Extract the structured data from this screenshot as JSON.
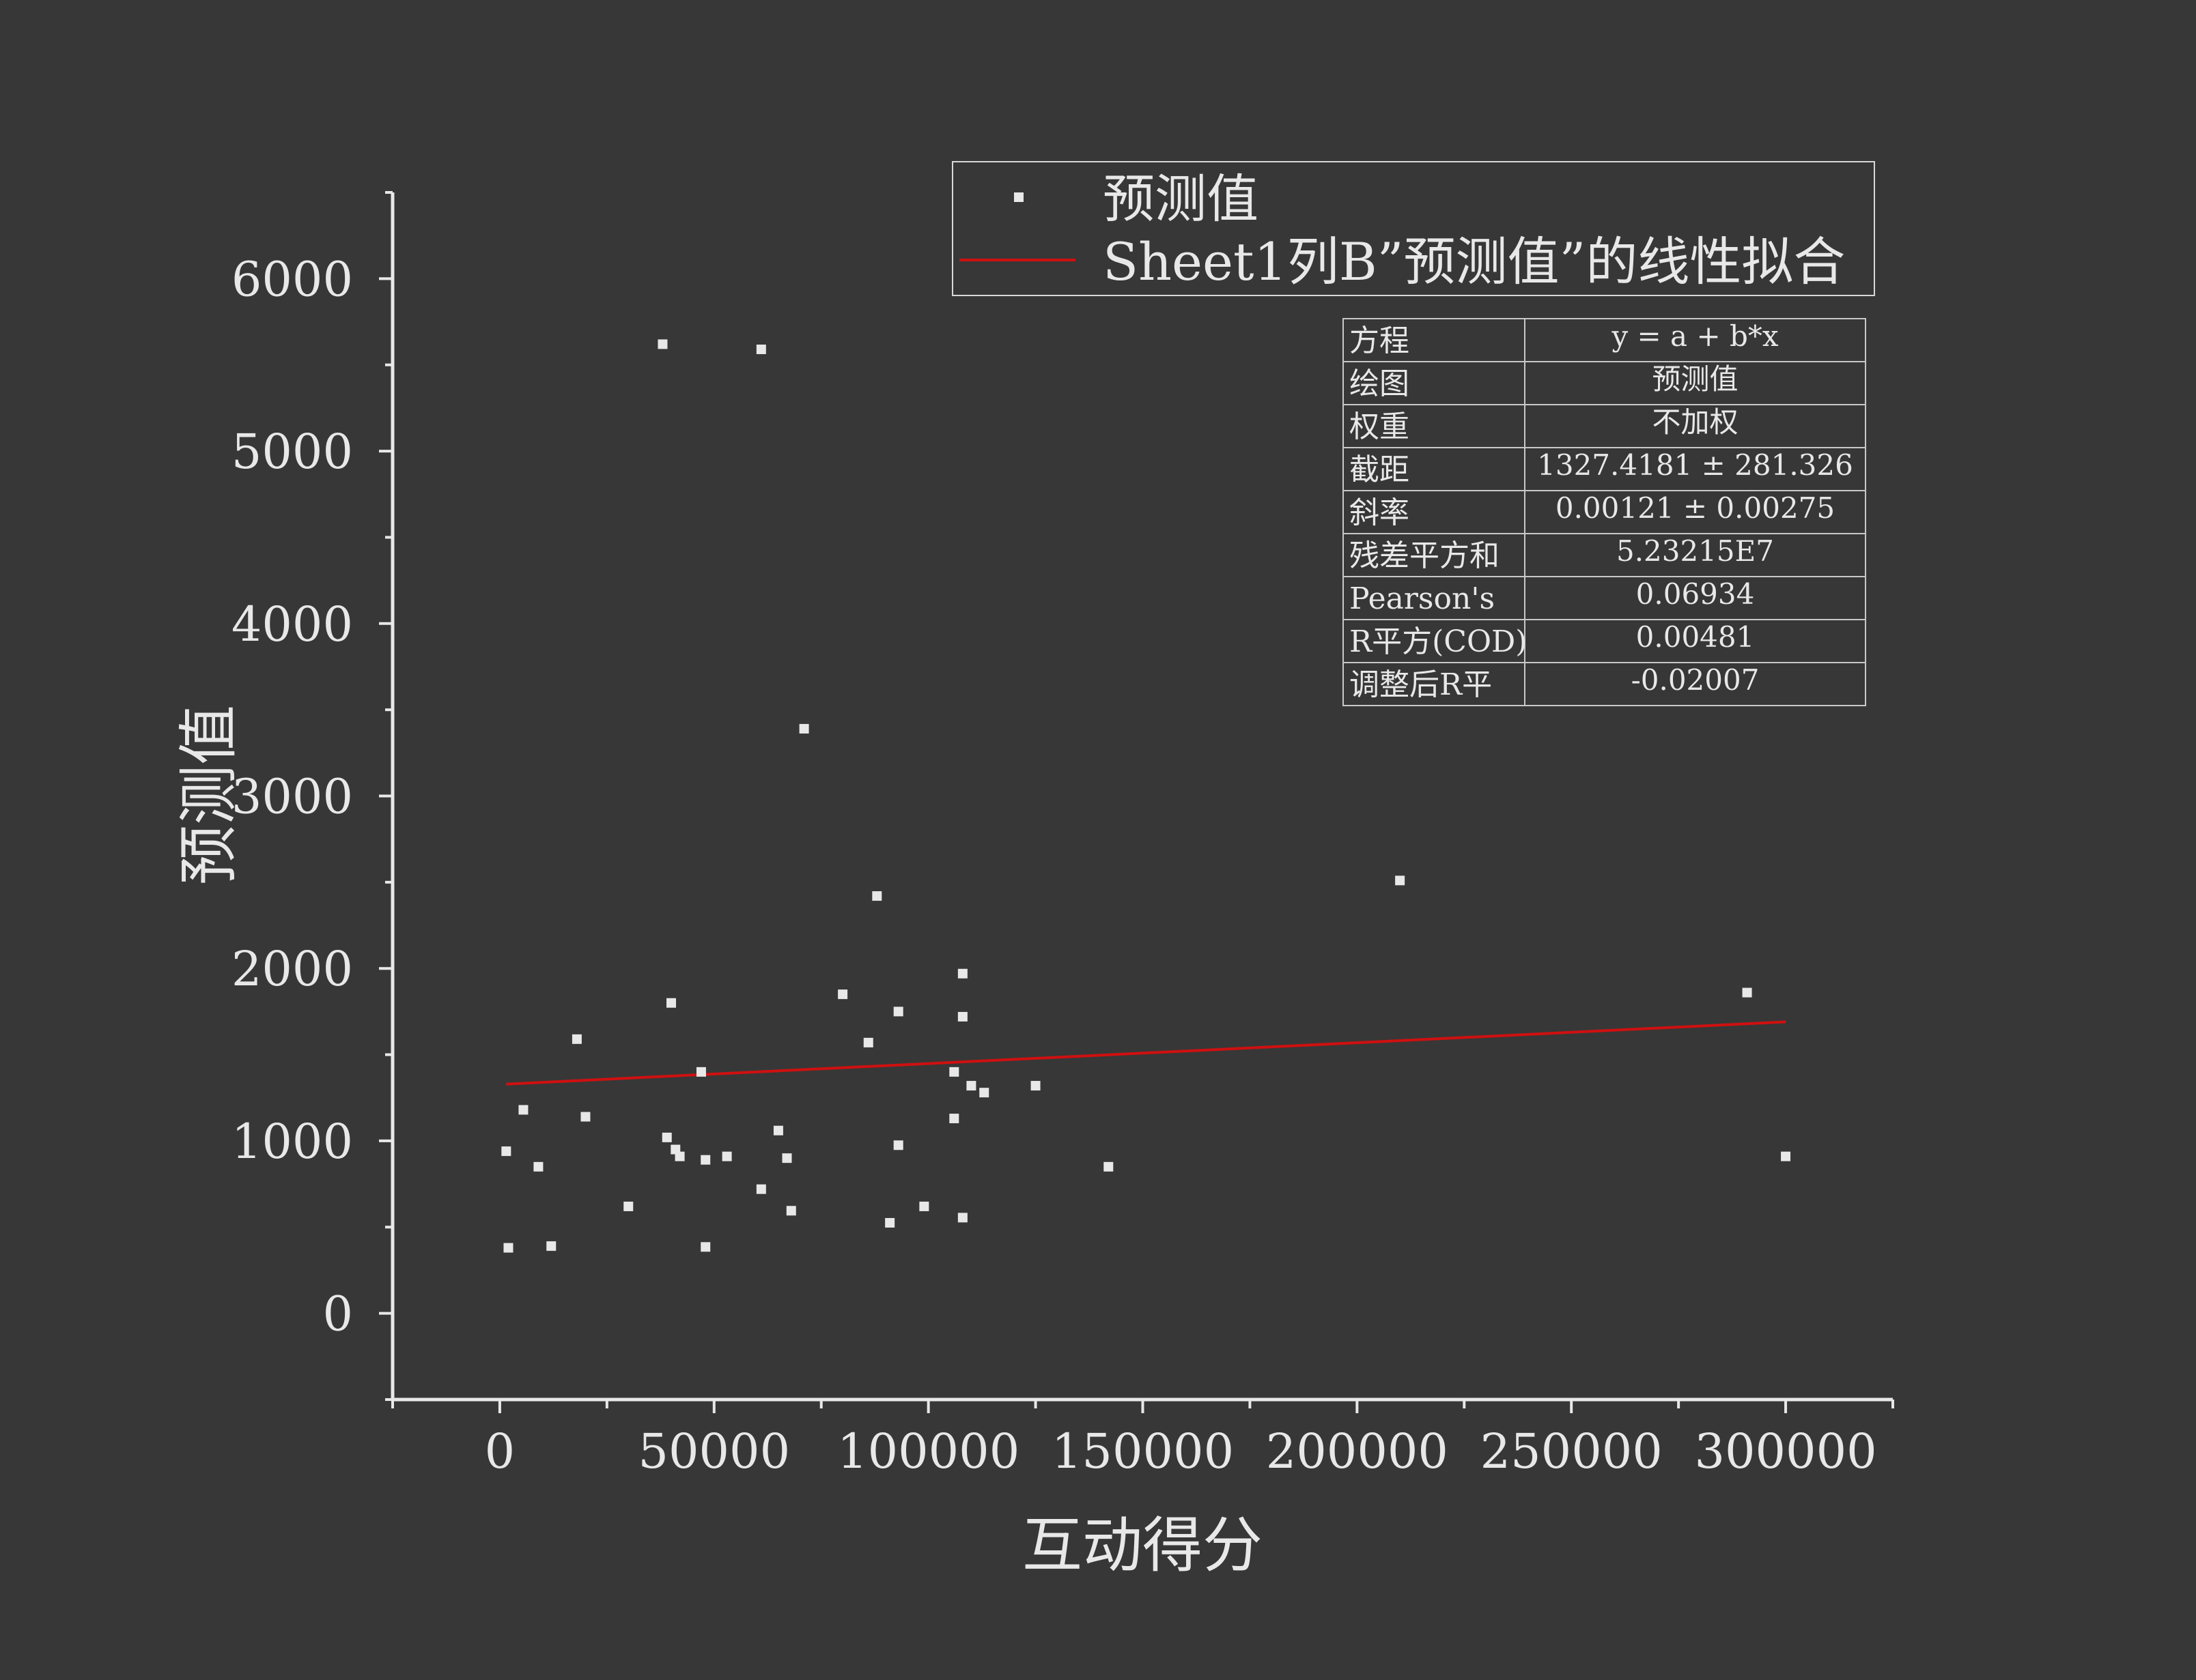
{
  "chart_data": {
    "type": "scatter",
    "xlabel": "互动得分",
    "ylabel": "预测值",
    "xlim": [
      -25000,
      325000
    ],
    "ylim": [
      -500,
      6500
    ],
    "xticks": [
      0,
      50000,
      100000,
      150000,
      200000,
      250000,
      300000
    ],
    "xtick_labels": [
      "0",
      "50000",
      "100000",
      "150000",
      "200000",
      "250000",
      "300000"
    ],
    "yticks": [
      0,
      1000,
      2000,
      3000,
      4000,
      5000,
      6000
    ],
    "ytick_labels": [
      "0",
      "1000",
      "2000",
      "3000",
      "4000",
      "5000",
      "6000"
    ],
    "grid": false,
    "legend": {
      "placement": "top-right",
      "entries": [
        {
          "label": "预测值",
          "marker": "square",
          "color": "#e8e8e8"
        },
        {
          "label": "Sheet1列B”预测值”的线性拟合",
          "marker": "line",
          "color": "#d01010"
        }
      ]
    },
    "series": [
      {
        "name": "预测值",
        "kind": "scatter",
        "color": "#e8e8e8",
        "points": [
          [
            1500,
            940
          ],
          [
            2000,
            380
          ],
          [
            5500,
            1180
          ],
          [
            9000,
            850
          ],
          [
            12000,
            390
          ],
          [
            20000,
            1140
          ],
          [
            18000,
            1590
          ],
          [
            30000,
            620
          ],
          [
            38000,
            5620
          ],
          [
            40000,
            1800
          ],
          [
            39000,
            1020
          ],
          [
            41000,
            950
          ],
          [
            42000,
            910
          ],
          [
            47000,
            1400
          ],
          [
            48000,
            890
          ],
          [
            48000,
            385
          ],
          [
            53000,
            910
          ],
          [
            61000,
            720
          ],
          [
            61000,
            5590
          ],
          [
            65000,
            1060
          ],
          [
            67000,
            900
          ],
          [
            68000,
            595
          ],
          [
            71000,
            3390
          ],
          [
            80000,
            1850
          ],
          [
            86000,
            1570
          ],
          [
            88000,
            2420
          ],
          [
            91000,
            525
          ],
          [
            93000,
            1750
          ],
          [
            93000,
            975
          ],
          [
            99000,
            620
          ],
          [
            106000,
            1400
          ],
          [
            106000,
            1130
          ],
          [
            108000,
            1970
          ],
          [
            108000,
            1720
          ],
          [
            108000,
            555
          ],
          [
            110000,
            1320
          ],
          [
            113000,
            1280
          ],
          [
            125000,
            1320
          ],
          [
            142000,
            850
          ],
          [
            210000,
            2510
          ],
          [
            291000,
            1860
          ],
          [
            300000,
            910
          ]
        ]
      },
      {
        "name": "Sheet1列B”预测值”的线性拟合",
        "kind": "line",
        "color": "#d01010",
        "points": [
          [
            1500,
            1329.2
          ],
          [
            300000,
            1690.4
          ]
        ]
      }
    ],
    "fit_table": [
      {
        "label": "方程",
        "value": "y = a + b*x"
      },
      {
        "label": "绘图",
        "value": "预测值"
      },
      {
        "label": "权重",
        "value": "不加权"
      },
      {
        "label": "截距",
        "value": "1327.4181 ± 281.326"
      },
      {
        "label": "斜率",
        "value": "0.00121 ± 0.00275"
      },
      {
        "label": "残差平方和",
        "value": "5.23215E7"
      },
      {
        "label": "Pearson's",
        "value": "0.06934"
      },
      {
        "label": "R平方(COD)",
        "value": "0.00481"
      },
      {
        "label": "调整后R平",
        "value": "-0.02007"
      }
    ]
  }
}
